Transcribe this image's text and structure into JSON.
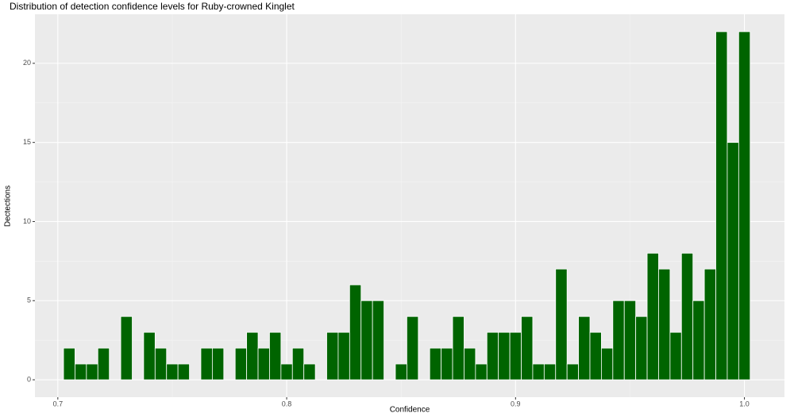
{
  "chart_data": {
    "type": "histogram",
    "title": "Distribution of detection confidence levels for Ruby-crowned Kinglet",
    "x_label": "Confidence",
    "y_label": "Dectections",
    "bins": [
      0.7025,
      0.7075,
      0.7125,
      0.7175,
      0.7225,
      0.7275,
      0.7325,
      0.7375,
      0.7425,
      0.7475,
      0.7525,
      0.7575,
      0.7625,
      0.7675,
      0.7725,
      0.7775,
      0.7825,
      0.7875,
      0.7925,
      0.7975,
      0.8025,
      0.8075,
      0.8125,
      0.8175,
      0.8225,
      0.8275,
      0.8325,
      0.8375,
      0.8425,
      0.8475,
      0.8525,
      0.8575,
      0.8625,
      0.8675,
      0.8725,
      0.8775,
      0.8825,
      0.8875,
      0.8925,
      0.8975,
      0.9025,
      0.9075,
      0.9125,
      0.9175,
      0.9225,
      0.9275,
      0.9325,
      0.9375,
      0.9425,
      0.9475,
      0.9525,
      0.9575,
      0.9625,
      0.9675,
      0.9725,
      0.9775,
      0.9825,
      0.9875,
      0.9925,
      0.9975,
      1.0025
    ],
    "counts": [
      2,
      1,
      1,
      2,
      0,
      4,
      0,
      3,
      2,
      1,
      1,
      0,
      2,
      2,
      0,
      2,
      3,
      2,
      3,
      1,
      2,
      1,
      0,
      3,
      3,
      6,
      5,
      5,
      0,
      1,
      4,
      0,
      2,
      2,
      4,
      2,
      1,
      3,
      3,
      3,
      4,
      1,
      1,
      7,
      1,
      4,
      3,
      2,
      5,
      5,
      4,
      8,
      7,
      3,
      8,
      5,
      7,
      22,
      15,
      22
    ],
    "color": "#006400",
    "xlim": [
      0.69,
      1.0175
    ],
    "xticks": [
      0.7,
      0.8,
      0.9,
      {
        "value": 1,
        "label": "1.0"
      }
    ],
    "ylim": [
      -1.1,
      23.1
    ],
    "yticks": [
      0,
      5,
      10,
      15,
      20
    ],
    "grid": true
  }
}
